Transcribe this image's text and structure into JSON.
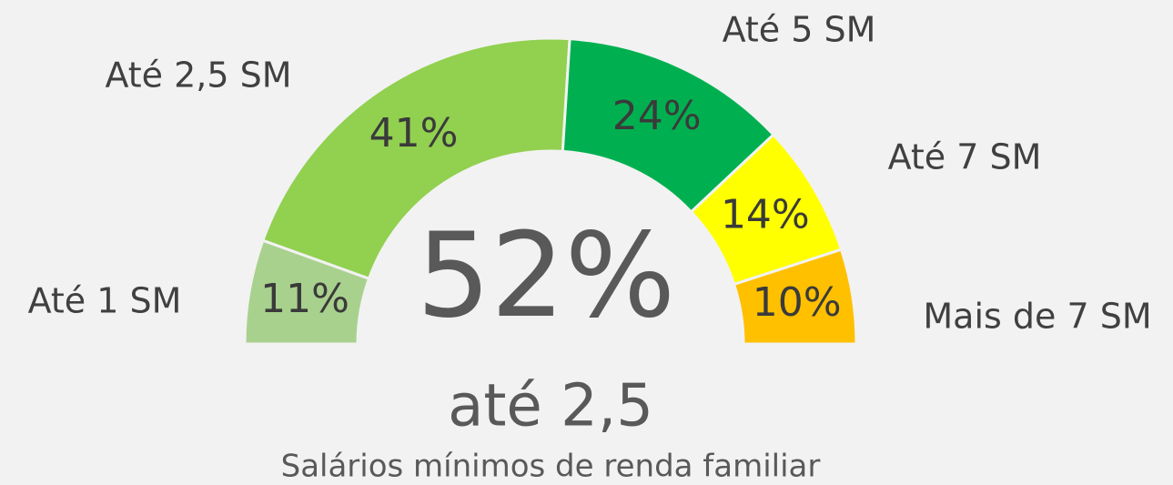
{
  "chart_data": {
    "type": "gauge",
    "categories": [
      "Até 1 SM",
      "Até 2,5 SM",
      "Até 5 SM",
      "Até 7 SM",
      "Mais de 7 SM"
    ],
    "values": [
      11,
      41,
      24,
      14,
      10
    ],
    "value_labels": [
      "11%",
      "41%",
      "24%",
      "14%",
      "10%"
    ],
    "colors": [
      "#a9d18e",
      "#92d050",
      "#00b050",
      "#ffff00",
      "#ffc000"
    ],
    "center_text": "52%",
    "center_subtitle": "até 2,5",
    "caption": "Salários mínimos  de renda familiar"
  }
}
